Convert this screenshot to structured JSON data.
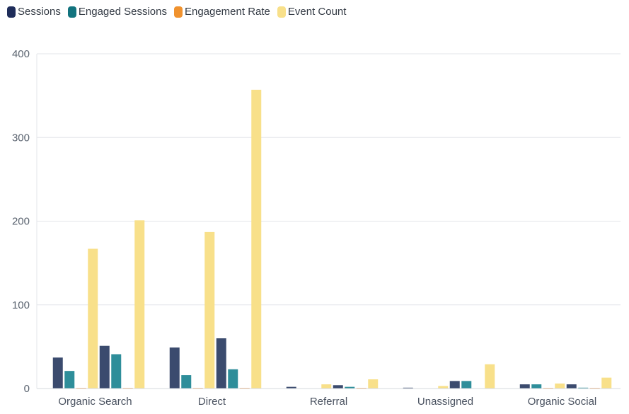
{
  "chart_data": {
    "type": "bar",
    "categories": [
      "Organic Search",
      "Direct",
      "Referral",
      "Unassigned",
      "Organic Social"
    ],
    "ylim": [
      0,
      400
    ],
    "yticks": [
      0,
      100,
      200,
      300,
      400
    ],
    "grid": true,
    "legend_position": "top-left",
    "series_colors": {
      "Sessions": "#3b4b6e",
      "Engaged Sessions": "#2e8e9a",
      "Engagement Rate": "#f5a25a",
      "Event Count": "#f8e08a"
    },
    "legend": [
      {
        "name": "Sessions",
        "color": "#1f2d5a"
      },
      {
        "name": "Engaged Sessions",
        "color": "#12737e"
      },
      {
        "name": "Engagement Rate",
        "color": "#f0922e"
      },
      {
        "name": "Event Count",
        "color": "#f8e08a"
      }
    ],
    "groups": [
      {
        "category": "Organic Search",
        "bars": [
          {
            "series": "Sessions",
            "value": 37
          },
          {
            "series": "Engaged Sessions",
            "value": 21
          },
          {
            "series": "Engagement Rate",
            "value": 0.6
          },
          {
            "series": "Event Count",
            "value": 167
          },
          {
            "series": "Sessions",
            "value": 51
          },
          {
            "series": "Engaged Sessions",
            "value": 41
          },
          {
            "series": "Engagement Rate",
            "value": 0.8
          },
          {
            "series": "Event Count",
            "value": 201
          }
        ]
      },
      {
        "category": "Direct",
        "bars": [
          {
            "series": "Sessions",
            "value": 49
          },
          {
            "series": "Engaged Sessions",
            "value": 16
          },
          {
            "series": "Engagement Rate",
            "value": 0.3
          },
          {
            "series": "Event Count",
            "value": 187
          },
          {
            "series": "Sessions",
            "value": 60
          },
          {
            "series": "Engaged Sessions",
            "value": 23
          },
          {
            "series": "Engagement Rate",
            "value": 0.4
          },
          {
            "series": "Event Count",
            "value": 357
          }
        ]
      },
      {
        "category": "Referral",
        "bars": [
          {
            "series": "Sessions",
            "value": 2
          },
          {
            "series": "Engaged Sessions",
            "value": 0
          },
          {
            "series": "Engagement Rate",
            "value": 0
          },
          {
            "series": "Event Count",
            "value": 5
          },
          {
            "series": "Sessions",
            "value": 4
          },
          {
            "series": "Engaged Sessions",
            "value": 2
          },
          {
            "series": "Engagement Rate",
            "value": 0.5
          },
          {
            "series": "Event Count",
            "value": 11
          }
        ]
      },
      {
        "category": "Unassigned",
        "bars": [
          {
            "series": "Sessions",
            "value": 1
          },
          {
            "series": "Engaged Sessions",
            "value": 0
          },
          {
            "series": "Engagement Rate",
            "value": 0
          },
          {
            "series": "Event Count",
            "value": 3
          },
          {
            "series": "Sessions",
            "value": 9
          },
          {
            "series": "Engaged Sessions",
            "value": 9
          },
          {
            "series": "Engagement Rate",
            "value": 0
          },
          {
            "series": "Event Count",
            "value": 29
          }
        ]
      },
      {
        "category": "Organic Social",
        "bars": [
          {
            "series": "Sessions",
            "value": 5
          },
          {
            "series": "Engaged Sessions",
            "value": 5
          },
          {
            "series": "Engagement Rate",
            "value": 0.5
          },
          {
            "series": "Event Count",
            "value": 6
          },
          {
            "series": "Sessions",
            "value": 5
          },
          {
            "series": "Engaged Sessions",
            "value": 1
          },
          {
            "series": "Engagement Rate",
            "value": 0.2
          },
          {
            "series": "Event Count",
            "value": 13
          }
        ]
      }
    ]
  }
}
